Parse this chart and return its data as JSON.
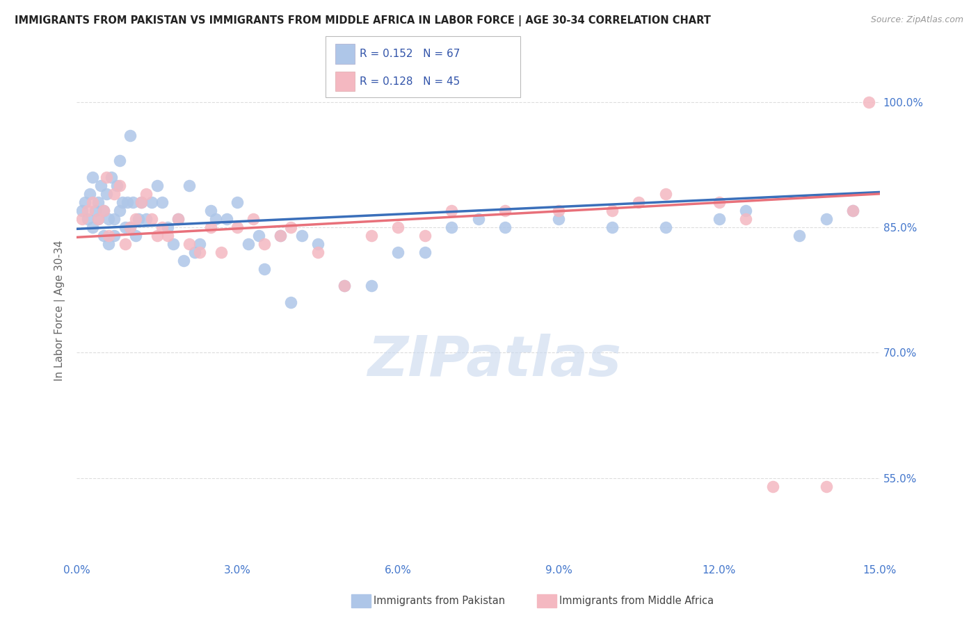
{
  "title": "IMMIGRANTS FROM PAKISTAN VS IMMIGRANTS FROM MIDDLE AFRICA IN LABOR FORCE | AGE 30-34 CORRELATION CHART",
  "source": "Source: ZipAtlas.com",
  "ylabel": "In Labor Force | Age 30-34",
  "xlim": [
    0.0,
    15.0
  ],
  "ylim": [
    45.0,
    105.0
  ],
  "xtick_positions": [
    0.0,
    1.5,
    3.0,
    4.5,
    6.0,
    7.5,
    9.0,
    10.5,
    12.0,
    13.5,
    15.0
  ],
  "xtick_labels": [
    "0.0%",
    "",
    "3.0%",
    "",
    "6.0%",
    "",
    "9.0%",
    "",
    "12.0%",
    "",
    "15.0%"
  ],
  "ytick_positions": [
    55.0,
    70.0,
    85.0,
    100.0
  ],
  "ytick_labels": [
    "55.0%",
    "70.0%",
    "85.0%",
    "100.0%"
  ],
  "pakistan_R": 0.152,
  "pakistan_N": 67,
  "midafrica_R": 0.128,
  "midafrica_N": 45,
  "pakistan_color": "#aec6e8",
  "pakistan_line_color": "#3a6fba",
  "midafrica_color": "#f4b8c1",
  "midafrica_line_color": "#e8707a",
  "pakistan_x": [
    0.1,
    0.15,
    0.2,
    0.25,
    0.3,
    0.3,
    0.35,
    0.4,
    0.4,
    0.45,
    0.5,
    0.5,
    0.55,
    0.6,
    0.6,
    0.65,
    0.7,
    0.7,
    0.75,
    0.8,
    0.8,
    0.85,
    0.9,
    0.95,
    1.0,
    1.0,
    1.05,
    1.1,
    1.15,
    1.2,
    1.3,
    1.4,
    1.5,
    1.6,
    1.7,
    1.8,
    1.9,
    2.0,
    2.1,
    2.2,
    2.3,
    2.5,
    2.6,
    2.8,
    3.0,
    3.2,
    3.4,
    3.5,
    3.8,
    4.0,
    4.2,
    4.5,
    5.0,
    5.5,
    6.0,
    6.5,
    7.0,
    7.5,
    8.0,
    9.0,
    10.0,
    11.0,
    12.0,
    12.5,
    13.5,
    14.0,
    14.5
  ],
  "pakistan_y": [
    87,
    88,
    86,
    89,
    85,
    91,
    87,
    88,
    86,
    90,
    84,
    87,
    89,
    83,
    86,
    91,
    86,
    84,
    90,
    87,
    93,
    88,
    85,
    88,
    96,
    85,
    88,
    84,
    86,
    88,
    86,
    88,
    90,
    88,
    85,
    83,
    86,
    81,
    90,
    82,
    83,
    87,
    86,
    86,
    88,
    83,
    84,
    80,
    84,
    76,
    84,
    83,
    78,
    78,
    82,
    82,
    85,
    86,
    85,
    86,
    85,
    85,
    86,
    87,
    84,
    86,
    87
  ],
  "midafrica_x": [
    0.1,
    0.2,
    0.3,
    0.4,
    0.5,
    0.55,
    0.6,
    0.7,
    0.8,
    0.9,
    1.0,
    1.1,
    1.2,
    1.3,
    1.4,
    1.5,
    1.6,
    1.7,
    1.9,
    2.1,
    2.3,
    2.5,
    2.7,
    3.0,
    3.3,
    3.5,
    3.8,
    4.0,
    4.5,
    5.0,
    5.5,
    6.0,
    6.5,
    7.0,
    8.0,
    9.0,
    10.0,
    10.5,
    11.0,
    12.0,
    12.5,
    13.0,
    14.0,
    14.5,
    14.8
  ],
  "midafrica_y": [
    86,
    87,
    88,
    86,
    87,
    91,
    84,
    89,
    90,
    83,
    85,
    86,
    88,
    89,
    86,
    84,
    85,
    84,
    86,
    83,
    82,
    85,
    82,
    85,
    86,
    83,
    84,
    85,
    82,
    78,
    84,
    85,
    84,
    87,
    87,
    87,
    87,
    88,
    89,
    88,
    86,
    54,
    54,
    87,
    100
  ],
  "watermark": "ZIPatlas",
  "background_color": "#ffffff",
  "grid_color": "#dddddd",
  "title_color": "#222222",
  "axis_label_color": "#666666",
  "tick_color": "#4477cc",
  "legend_R_color": "#3355aa"
}
